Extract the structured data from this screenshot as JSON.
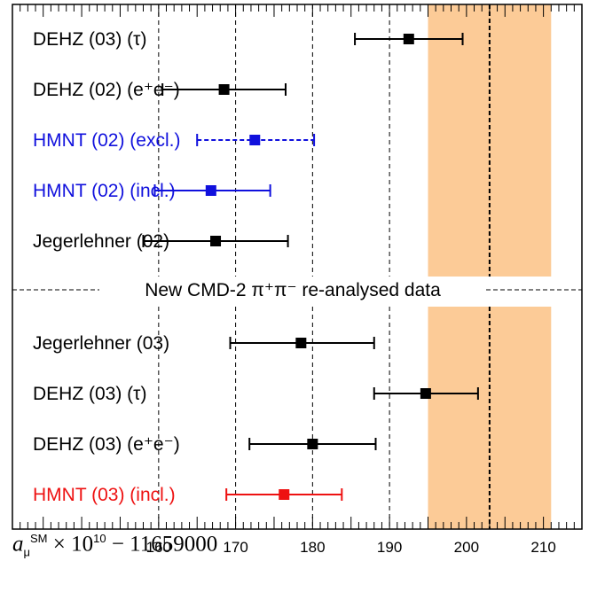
{
  "chart_data": {
    "type": "scatter",
    "subtype": "forest-plot-with-horizontal-error-bars",
    "xlim": [
      141,
      215
    ],
    "x_ticks": [
      160,
      170,
      180,
      190,
      200,
      210
    ],
    "x_tick_labels": [
      "160",
      "170",
      "180",
      "190",
      "200",
      "210"
    ],
    "reference_lines": [
      160,
      170,
      180,
      190
    ],
    "experimental_band": {
      "value": 203,
      "low": 195,
      "high": 211,
      "color": "#fccb97"
    },
    "section_label": "New CMD-2 π⁺π⁻ re-analysed data",
    "xlabel": {
      "symbol": "a",
      "sub": "μ",
      "sup": "SM",
      "rest": " × 10",
      "exp": "10",
      "tail": " − 11659000"
    },
    "entries": [
      {
        "label": "DEHZ (03) (τ)",
        "value": 192.5,
        "low": 185.5,
        "high": 199.5,
        "color": "#000000",
        "dashed": false,
        "section": 1
      },
      {
        "label": "DEHZ (02) (e⁺e⁻)",
        "value": 168.5,
        "low": 160.5,
        "high": 176.5,
        "color": "#000000",
        "dashed": false,
        "section": 1
      },
      {
        "label": "HMNT (02) (excl.)",
        "value": 172.5,
        "low": 165.0,
        "high": 180.2,
        "color": "#1010dd",
        "dashed": true,
        "section": 1
      },
      {
        "label": "HMNT (02) (incl.)",
        "value": 166.8,
        "low": 159.5,
        "high": 174.5,
        "color": "#1010dd",
        "dashed": false,
        "section": 1
      },
      {
        "label": "Jegerlehner (02)",
        "value": 167.4,
        "low": 158.0,
        "high": 176.8,
        "color": "#000000",
        "dashed": false,
        "section": 1
      },
      {
        "label": "Jegerlehner (03)",
        "value": 178.5,
        "low": 169.3,
        "high": 188.0,
        "color": "#000000",
        "dashed": false,
        "section": 2
      },
      {
        "label": "DEHZ (03) (τ)",
        "value": 194.7,
        "low": 188.0,
        "high": 201.5,
        "color": "#000000",
        "dashed": false,
        "section": 2
      },
      {
        "label": "DEHZ (03) (e⁺e⁻)",
        "value": 180.0,
        "low": 171.8,
        "high": 188.2,
        "color": "#000000",
        "dashed": false,
        "section": 2
      },
      {
        "label": "HMNT (03) (incl.)",
        "value": 176.3,
        "low": 168.8,
        "high": 183.8,
        "color": "#ee1111",
        "dashed": false,
        "section": 2
      }
    ]
  }
}
